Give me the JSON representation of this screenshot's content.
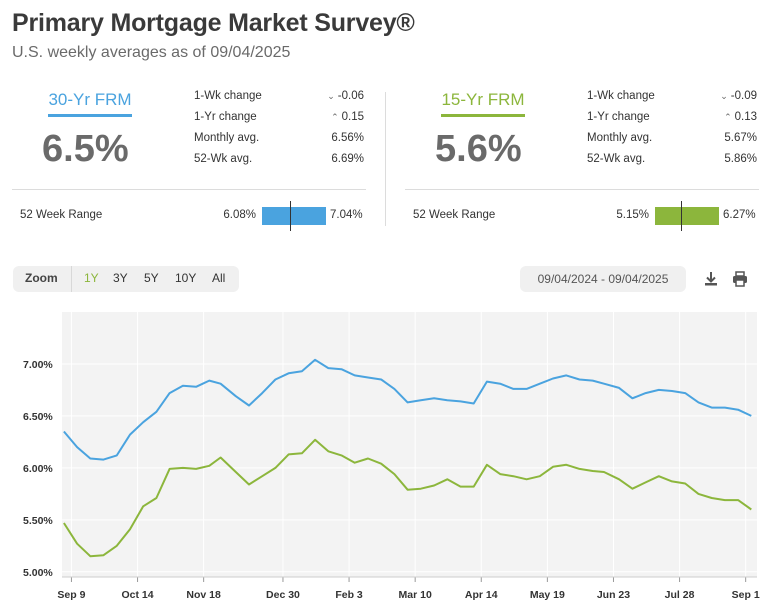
{
  "header": {
    "title": "Primary Mortgage Market Survey®",
    "subtitle": "U.S. weekly averages as of 09/04/2025"
  },
  "panels": [
    {
      "name": "30-Yr FRM",
      "color": "#4aa3df",
      "rate": "6.5%",
      "stats": [
        {
          "label": "1-Wk change",
          "icon": "chevron-down-icon",
          "value": "-0.06"
        },
        {
          "label": "1-Yr change",
          "icon": "chevron-up-icon",
          "value": "0.15"
        },
        {
          "label": "Monthly avg.",
          "icon": "",
          "value": "6.56%"
        },
        {
          "label": "52-Wk avg.",
          "icon": "",
          "value": "6.69%"
        }
      ],
      "range": {
        "label": "52 Week Range",
        "low": "6.08%",
        "high": "7.04%",
        "current_fraction": 0.44
      }
    },
    {
      "name": "15-Yr FRM",
      "color": "#8cb63c",
      "rate": "5.6%",
      "stats": [
        {
          "label": "1-Wk change",
          "icon": "chevron-down-icon",
          "value": "-0.09"
        },
        {
          "label": "1-Yr change",
          "icon": "chevron-up-icon",
          "value": "0.13"
        },
        {
          "label": "Monthly avg.",
          "icon": "",
          "value": "5.67%"
        },
        {
          "label": "52-Wk avg.",
          "icon": "",
          "value": "5.86%"
        }
      ],
      "range": {
        "label": "52 Week Range",
        "low": "5.15%",
        "high": "6.27%",
        "current_fraction": 0.4
      }
    }
  ],
  "controls": {
    "zoom_label": "Zoom",
    "zoom_options": [
      "1Y",
      "3Y",
      "5Y",
      "10Y",
      "All"
    ],
    "active_zoom": "1Y",
    "date_range": "09/04/2024 - 09/04/2025",
    "download_icon": "download-icon",
    "print_icon": "print-icon"
  },
  "chart_data": {
    "type": "line",
    "ylim": [
      4.95,
      7.5
    ],
    "yticks": [
      "7.00%",
      "6.50%",
      "6.00%",
      "5.50%",
      "5.00%"
    ],
    "ytick_values": [
      7.0,
      6.5,
      6.0,
      5.5,
      5.0
    ],
    "x": [
      "2024-09-05",
      "2024-09-12",
      "2024-09-19",
      "2024-09-26",
      "2024-10-03",
      "2024-10-10",
      "2024-10-17",
      "2024-10-24",
      "2024-10-31",
      "2024-11-07",
      "2024-11-14",
      "2024-11-21",
      "2024-11-27",
      "2024-12-05",
      "2024-12-12",
      "2024-12-19",
      "2024-12-26",
      "2025-01-02",
      "2025-01-09",
      "2025-01-16",
      "2025-01-23",
      "2025-01-30",
      "2025-02-06",
      "2025-02-13",
      "2025-02-20",
      "2025-02-27",
      "2025-03-06",
      "2025-03-13",
      "2025-03-20",
      "2025-03-27",
      "2025-04-03",
      "2025-04-10",
      "2025-04-17",
      "2025-04-24",
      "2025-05-01",
      "2025-05-08",
      "2025-05-15",
      "2025-05-22",
      "2025-05-29",
      "2025-06-05",
      "2025-06-12",
      "2025-06-18",
      "2025-06-26",
      "2025-07-03",
      "2025-07-10",
      "2025-07-17",
      "2025-07-24",
      "2025-07-31",
      "2025-08-07",
      "2025-08-14",
      "2025-08-21",
      "2025-08-28",
      "2025-09-04"
    ],
    "xtick_labels": [
      "Sep 9",
      "Oct 14",
      "Nov 18",
      "Dec 30",
      "Feb 3",
      "Mar 10",
      "Apr 14",
      "May 19",
      "Jun 23",
      "Jul 28",
      "Sep 1"
    ],
    "xtick_dates": [
      "2024-09-09",
      "2024-10-14",
      "2024-11-18",
      "2024-12-30",
      "2025-02-03",
      "2025-03-10",
      "2025-04-14",
      "2025-05-19",
      "2025-06-23",
      "2025-07-28",
      "2025-09-01"
    ],
    "x_start": "2024-09-04",
    "x_end": "2025-09-07",
    "series": [
      {
        "name": "30-Yr FRM",
        "color": "#4aa3df",
        "values": [
          6.35,
          6.2,
          6.09,
          6.08,
          6.12,
          6.32,
          6.44,
          6.54,
          6.72,
          6.79,
          6.78,
          6.84,
          6.81,
          6.69,
          6.6,
          6.72,
          6.85,
          6.91,
          6.93,
          7.04,
          6.96,
          6.95,
          6.89,
          6.87,
          6.85,
          6.76,
          6.63,
          6.65,
          6.67,
          6.65,
          6.64,
          6.62,
          6.83,
          6.81,
          6.76,
          6.76,
          6.81,
          6.86,
          6.89,
          6.85,
          6.84,
          6.81,
          6.77,
          6.67,
          6.72,
          6.75,
          6.74,
          6.72,
          6.63,
          6.58,
          6.58,
          6.56,
          6.5
        ]
      },
      {
        "name": "15-Yr FRM",
        "color": "#8cb63c",
        "values": [
          5.47,
          5.27,
          5.15,
          5.16,
          5.25,
          5.41,
          5.63,
          5.71,
          5.99,
          6.0,
          5.99,
          6.02,
          6.1,
          5.96,
          5.84,
          5.92,
          6.0,
          6.13,
          6.14,
          6.27,
          6.16,
          6.12,
          6.05,
          6.09,
          6.04,
          5.94,
          5.79,
          5.8,
          5.83,
          5.89,
          5.82,
          5.82,
          6.03,
          5.94,
          5.92,
          5.89,
          5.92,
          6.01,
          6.03,
          5.99,
          5.97,
          5.96,
          5.89,
          5.8,
          5.86,
          5.92,
          5.87,
          5.85,
          5.75,
          5.71,
          5.69,
          5.69,
          5.6
        ]
      }
    ]
  }
}
